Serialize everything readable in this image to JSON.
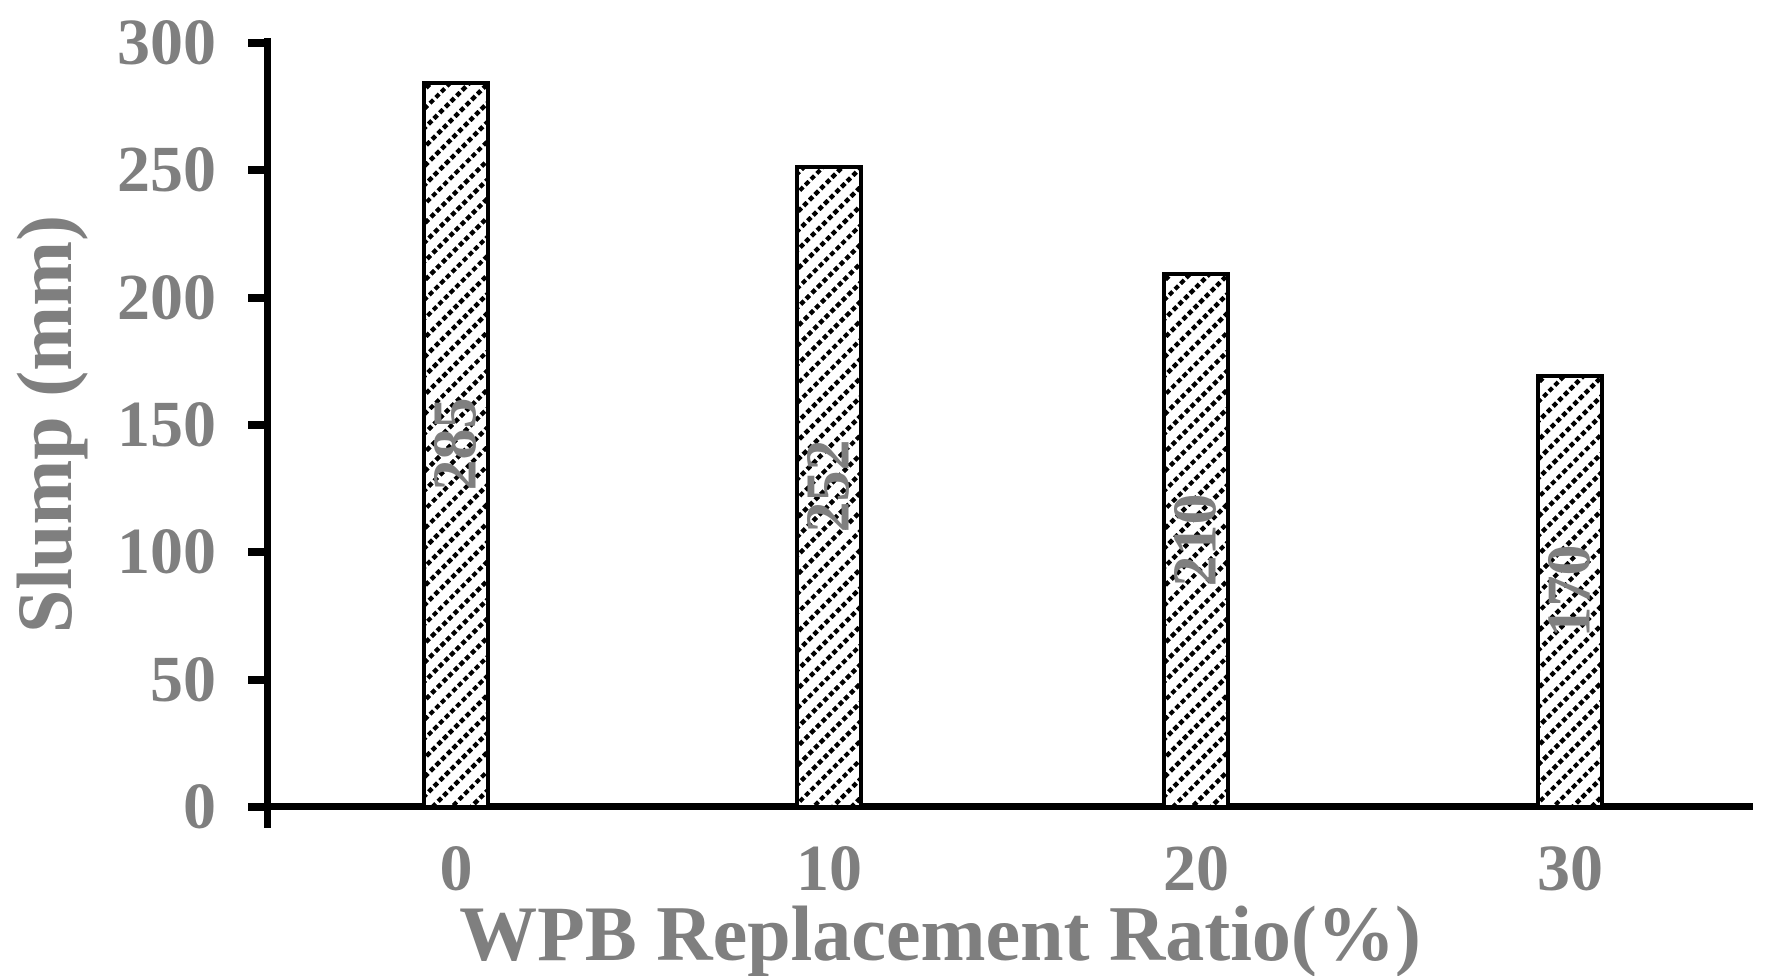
{
  "chart_data": {
    "type": "bar",
    "title": "",
    "xlabel": "WPB Replacement Ratio(%)",
    "ylabel": "Slump (mm)",
    "categories": [
      "0",
      "10",
      "20",
      "30"
    ],
    "values": [
      285,
      252,
      210,
      170
    ],
    "data_labels": [
      "285",
      "252",
      "210",
      "170"
    ],
    "data_label_rotation_deg": -90,
    "ylim": [
      0,
      300
    ],
    "ytick_interval": 50,
    "ytick_labels": [
      "0",
      "50",
      "100",
      "150",
      "200",
      "250",
      "300"
    ],
    "grid": false,
    "legend_position": "none",
    "bar_style": {
      "fill_color": "#ffffff",
      "hatch": "upward-diagonal",
      "hatch_color": "#000000",
      "border_color": "#000000"
    },
    "colors": {
      "axis": "#000000",
      "label_text": "#7f7f7f"
    }
  }
}
